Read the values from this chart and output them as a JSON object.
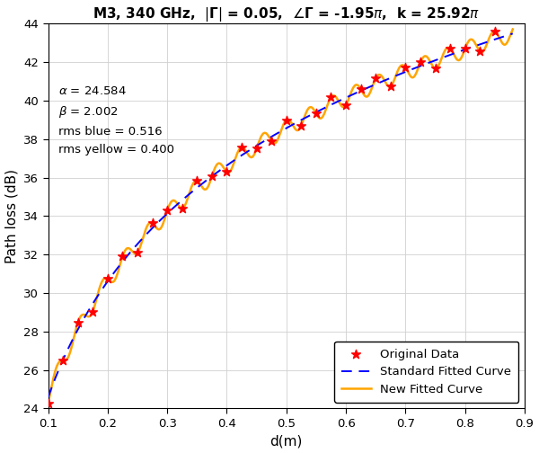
{
  "title": "M3, 340 GHz,  |\\Gamma| = 0.05,  \\angle\\Gamma = -1.95\\pi,  k = 25.92\\pi",
  "xlabel": "d(m)",
  "ylabel": "Path loss (dB)",
  "xlim": [
    0.1,
    0.9
  ],
  "ylim": [
    24,
    44
  ],
  "xticks": [
    0.1,
    0.2,
    0.3,
    0.4,
    0.5,
    0.6,
    0.7,
    0.8,
    0.9
  ],
  "yticks": [
    24,
    26,
    28,
    30,
    32,
    34,
    36,
    38,
    40,
    42,
    44
  ],
  "alpha": 24.584,
  "beta": 2.002,
  "Gamma_mag": 0.05,
  "Gamma_phase": -1.95,
  "k": 25.92,
  "blue_color": "#0000FF",
  "orange_color": "#FFA500",
  "red_color": "#FF0000",
  "data_d": [
    0.1,
    0.125,
    0.15,
    0.175,
    0.2,
    0.225,
    0.25,
    0.275,
    0.3,
    0.325,
    0.35,
    0.375,
    0.4,
    0.425,
    0.45,
    0.475,
    0.5,
    0.525,
    0.55,
    0.575,
    0.6,
    0.625,
    0.65,
    0.675,
    0.7,
    0.725,
    0.75,
    0.775,
    0.8,
    0.825,
    0.85
  ],
  "d_ref": 0.1,
  "background_color": "#FFFFFF",
  "figsize": [
    6.0,
    5.04
  ],
  "dpi": 100
}
